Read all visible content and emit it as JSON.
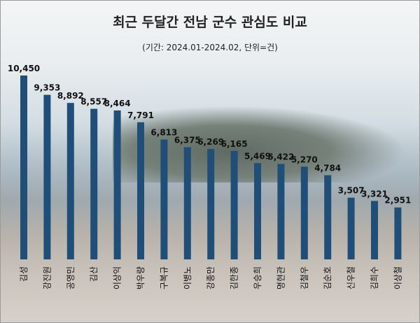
{
  "chart_data": {
    "type": "bar",
    "title": "최근 두달간 전남 군수 관심도 비교",
    "subtitle": "(기간:  2024.01-2024.02, 단위=건)",
    "categories": [
      "김성",
      "강진원",
      "공영민",
      "김산",
      "이상익",
      "박우량",
      "구복규",
      "이병노",
      "강종만",
      "김한종",
      "우승희",
      "명현관",
      "김철우",
      "김순호",
      "신우철",
      "김희수",
      "이상철"
    ],
    "values": [
      10450,
      9353,
      8892,
      8557,
      8464,
      7791,
      6813,
      6375,
      6269,
      6165,
      5469,
      5422,
      5270,
      4784,
      3507,
      3321,
      2951
    ],
    "value_labels": [
      "10,450",
      "9,353",
      "8,892",
      "8,557",
      "8,464",
      "7,791",
      "6,813",
      "6,375",
      "6,269",
      "6,165",
      "5,469",
      "5,422",
      "5,270",
      "4,784",
      "3,507",
      "3,321",
      "2,951"
    ],
    "ylim": [
      0,
      10450
    ],
    "grid": false,
    "bar_color": "#1f4e79"
  }
}
